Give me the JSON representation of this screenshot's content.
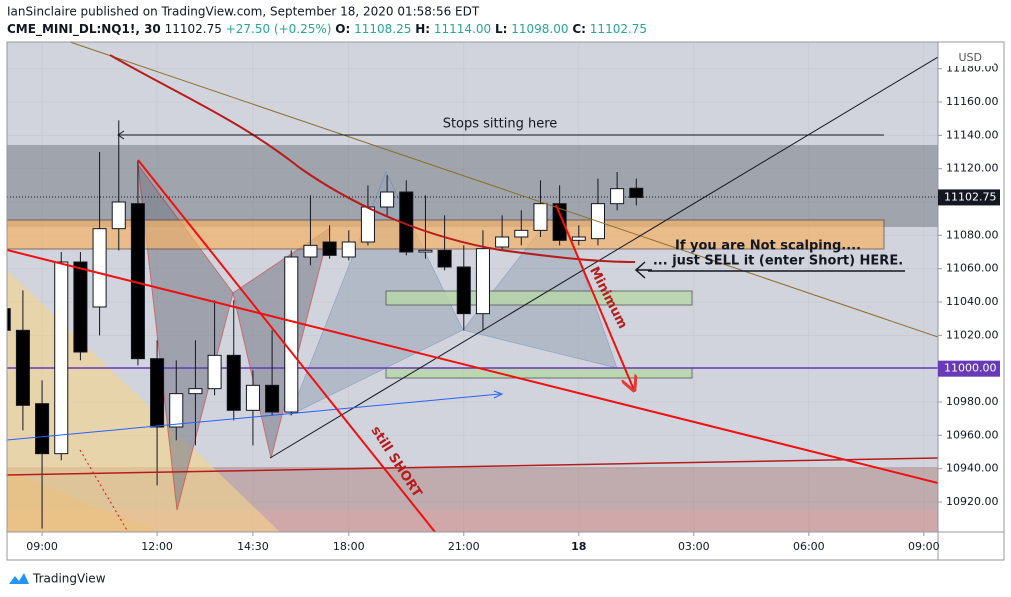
{
  "header": {
    "title": "IanSinclaire published on TradingView.com, September 18, 2020 01:58:56 EDT",
    "symbol": "CME_MINI_DL:NQ1!, 30",
    "last": "11102.75",
    "change": "+27.50 (+0.25%)",
    "ohlc": [
      {
        "key": "O:",
        "value": "11108.25"
      },
      {
        "key": "H:",
        "value": "11114.00"
      },
      {
        "key": "L:",
        "value": "11098.00"
      },
      {
        "key": "C:",
        "value": "11102.75"
      }
    ],
    "brand": "TradingView"
  },
  "chart_data": {
    "type": "candlestick",
    "currency": "USD",
    "x": [
      -2,
      -1,
      0,
      1,
      2,
      3,
      4,
      5,
      6,
      7,
      8,
      9,
      10,
      11,
      12,
      13,
      14,
      15,
      16,
      17,
      18,
      19,
      20,
      21,
      22,
      23,
      24,
      25,
      26,
      27,
      28,
      29,
      30,
      31
    ],
    "open": [
      11036,
      11023,
      10979,
      10949,
      11064,
      11037,
      11084,
      11099,
      11006,
      10965,
      10985,
      10988,
      11008,
      10975,
      10990,
      10974,
      11067,
      11076,
      11067,
      11076,
      11097,
      11106,
      11070,
      11071,
      11061,
      11033,
      11073,
      11079,
      11083,
      11099,
      11077,
      11078,
      11099,
      11108.25
    ],
    "high": [
      11040,
      11047,
      10993,
      11070,
      11070,
      11130,
      11149,
      11125,
      11017,
      11005,
      11017,
      11041,
      11041,
      10999,
      11023,
      11071,
      11104,
      11086,
      11083,
      11110,
      11116,
      11113,
      11104,
      11092,
      11074,
      11083,
      11092,
      11095,
      11113,
      11110,
      11086,
      11114,
      11118,
      11114
    ],
    "low": [
      11020,
      10963,
      10904,
      10945,
      11005,
      11020,
      11071,
      11002,
      10930,
      10957,
      10954,
      10984,
      10969,
      10954,
      10972,
      10972,
      11062,
      11066,
      11065,
      11074,
      11092,
      11068,
      11066,
      11059,
      11023,
      11023,
      11071,
      11074,
      11079,
      11074,
      11074,
      11074,
      11095,
      11098
    ],
    "close": [
      11023,
      10978,
      10949,
      11064,
      11010,
      11084,
      11100,
      11006,
      10965,
      10985,
      10988,
      11008,
      10975,
      10990,
      10974,
      11067,
      11074,
      11068,
      11076,
      11097,
      11106,
      11070,
      11071,
      11061,
      11033,
      11072,
      11079,
      11083,
      11099,
      11077,
      11079,
      11099,
      11108,
      11102.75
    ],
    "up_color": "#ffffff",
    "down_color": "#000000",
    "xlim": [
      -1.83,
      46.74
    ],
    "xticks": [
      {
        "value": 0,
        "label": "09:00"
      },
      {
        "value": 6,
        "label": "12:00"
      },
      {
        "value": 11,
        "label": "14:30"
      },
      {
        "value": 16,
        "label": "18:00"
      },
      {
        "value": 22,
        "label": "21:00"
      },
      {
        "value": 28,
        "label": "18"
      },
      {
        "value": 34,
        "label": "03:00"
      },
      {
        "value": 40,
        "label": "06:00"
      },
      {
        "value": 46,
        "label": "09:00"
      }
    ],
    "ylim": [
      10902,
      11196
    ],
    "yticks": [
      {
        "value": 10920,
        "label": "10920.00"
      },
      {
        "value": 10940,
        "label": "10940.00"
      },
      {
        "value": 10960,
        "label": "10960.00"
      },
      {
        "value": 10980,
        "label": "10980.00"
      },
      {
        "value": 11000,
        "label": "11000.00"
      },
      {
        "value": 11020,
        "label": "11020.00"
      },
      {
        "value": 11040,
        "label": "11040.00"
      },
      {
        "value": 11060,
        "label": "11060.00"
      },
      {
        "value": 11080,
        "label": "11080.00"
      },
      {
        "value": 11100,
        "label": "11100.00"
      },
      {
        "value": 11120,
        "label": "11120.00"
      },
      {
        "value": 11140,
        "label": "11140.00"
      },
      {
        "value": 11160,
        "label": "11160.00"
      },
      {
        "value": 11180,
        "label": "11180.00"
      }
    ],
    "price_labels": [
      {
        "value": 11102.75,
        "label": "11102.75",
        "color": "#131722"
      },
      {
        "value": 11000,
        "label": "11000.00",
        "color": "#673ab7"
      }
    ],
    "annotations": [
      "Stops sitting here",
      "If you are Not scalping....",
      "... just SELL it (enter Short) HERE.",
      "Minimum",
      "still SHORT"
    ]
  }
}
